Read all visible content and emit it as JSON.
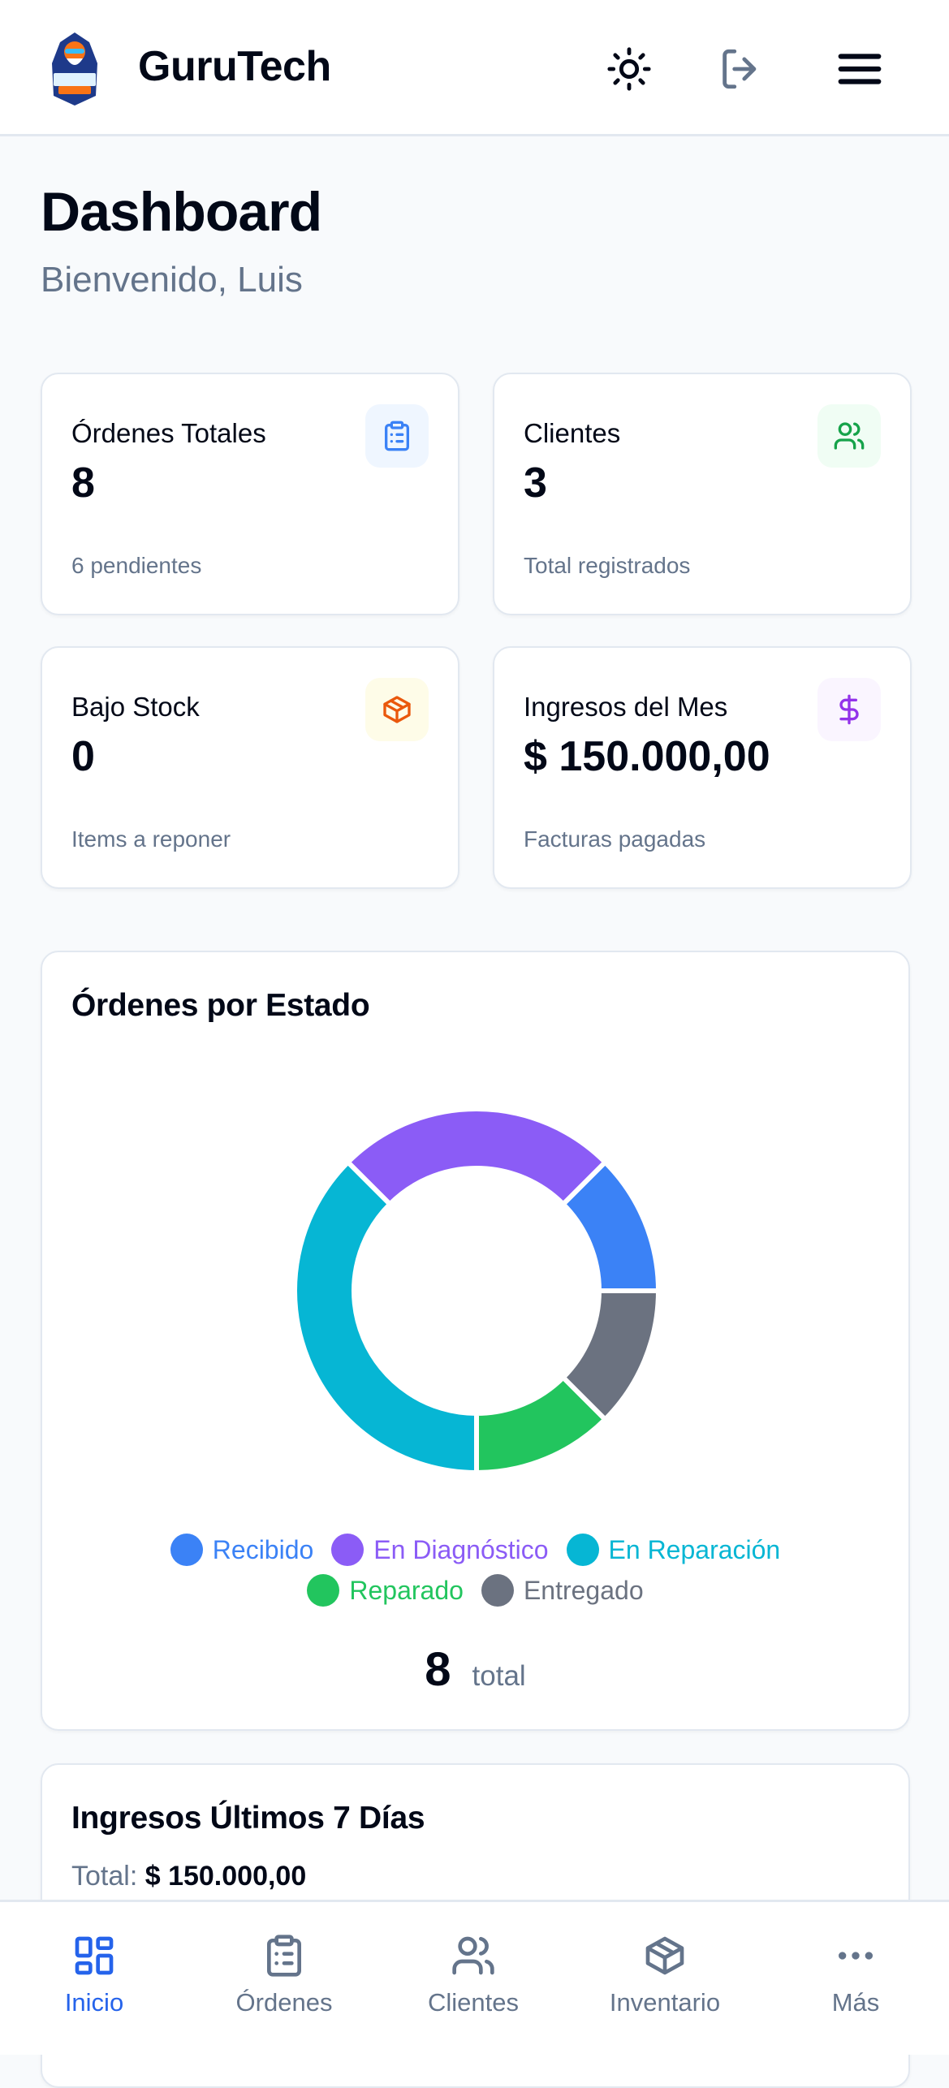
{
  "header": {
    "brand": "GuruTech",
    "logo_text": "GURU TECH",
    "icons": [
      "sun-icon",
      "log-out-icon",
      "menu-icon"
    ]
  },
  "page": {
    "title": "Dashboard",
    "subtitle": "Bienvenido, Luis"
  },
  "stats": [
    {
      "label": "Órdenes Totales",
      "value": "8",
      "sub": "6 pendientes",
      "icon": "clipboard-icon",
      "color": "#3b82f6",
      "bg": "#eff6ff"
    },
    {
      "label": "Clientes",
      "value": "3",
      "sub": "Total registrados",
      "icon": "users-icon",
      "color": "#16a34a",
      "bg": "#f0fdf4"
    },
    {
      "label": "Bajo Stock",
      "value": "0",
      "sub": "Items a reponer",
      "icon": "package-icon",
      "color": "#ea580c",
      "bg": "#fefce8"
    },
    {
      "label": "Ingresos del Mes",
      "value": "$ 150.000,00",
      "sub": "Facturas pagadas",
      "icon": "dollar-icon",
      "color": "#9333ea",
      "bg": "#faf5ff"
    }
  ],
  "orders_chart": {
    "title": "Órdenes por Estado",
    "total_value": "8",
    "total_label": "total"
  },
  "chart_data": {
    "type": "pie",
    "title": "Órdenes por Estado",
    "categories": [
      "Recibido",
      "En Diagnóstico",
      "En Reparación",
      "Reparado",
      "Entregado"
    ],
    "values": [
      1,
      2,
      3,
      1,
      1
    ],
    "colors": [
      "#3b82f6",
      "#8b5cf6",
      "#06b6d4",
      "#22c55e",
      "#6b7280"
    ],
    "donut": true,
    "legend": "bottom"
  },
  "revenue": {
    "title": "Ingresos Últimos 7 Días",
    "total_label": "Total:",
    "total_value": "$ 150.000,00"
  },
  "nav": [
    {
      "label": "Inicio",
      "icon": "layout-dashboard-icon",
      "active": true
    },
    {
      "label": "Órdenes",
      "icon": "clipboard-icon"
    },
    {
      "label": "Clientes",
      "icon": "users-icon"
    },
    {
      "label": "Inventario",
      "icon": "package-icon"
    },
    {
      "label": "Más",
      "icon": "more-horizontal-icon"
    }
  ],
  "colors": {
    "accent": "#2563eb",
    "muted": "#64748b",
    "background": "#f8fafc"
  }
}
